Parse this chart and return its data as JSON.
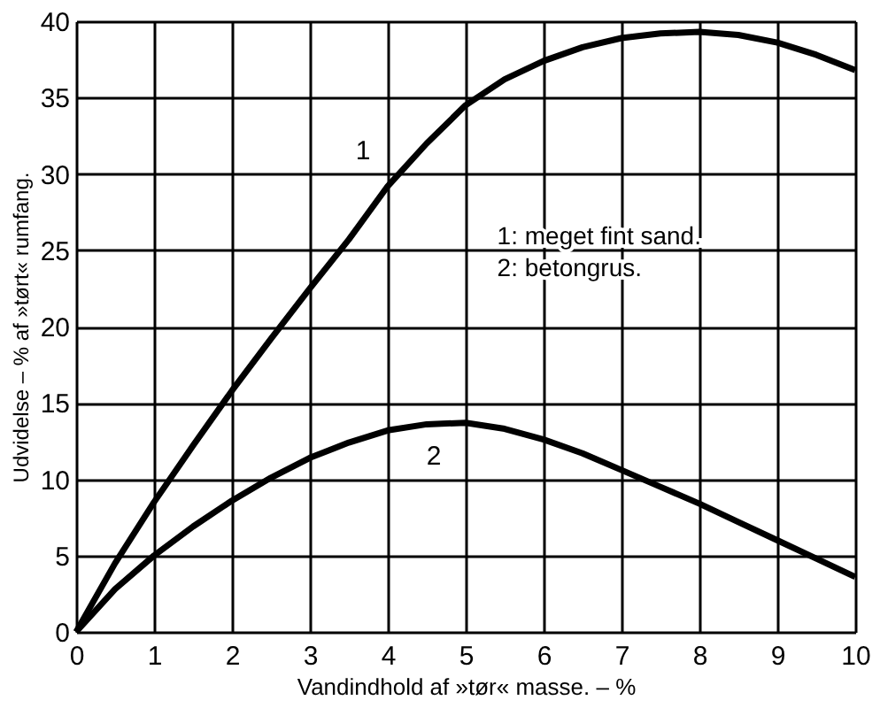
{
  "chart_data": {
    "type": "line",
    "xlabel": "Vandindhold af »tør« masse. – %",
    "ylabel": "Udvidelse – % af »tørt« rumfang.",
    "xlim": [
      0,
      10
    ],
    "ylim": [
      0,
      40
    ],
    "xticks": [
      0,
      1,
      2,
      3,
      4,
      5,
      6,
      7,
      8,
      9,
      10
    ],
    "yticks": [
      0,
      5,
      10,
      15,
      20,
      25,
      30,
      35,
      40
    ],
    "grid": true,
    "legend": false,
    "marker": "none",
    "line_style": "solid",
    "x": [
      0,
      0.5,
      1,
      1.5,
      2,
      2.5,
      3,
      3.5,
      4,
      4.5,
      5,
      5.5,
      6,
      6.5,
      7,
      7.5,
      8,
      8.5,
      9,
      9.5,
      10
    ],
    "series": [
      {
        "name": "1",
        "color": "#000000",
        "values": [
          0,
          4.5,
          8.5,
          12.2,
          15.8,
          19.2,
          22.5,
          25.7,
          29.2,
          32,
          34.5,
          36.2,
          37.4,
          38.3,
          38.9,
          39.2,
          39.3,
          39.1,
          38.6,
          37.8,
          36.8
        ]
      },
      {
        "name": "2",
        "color": "#000000",
        "values": [
          0,
          2.8,
          5,
          6.9,
          8.6,
          10.1,
          11.4,
          12.4,
          13.2,
          13.6,
          13.7,
          13.3,
          12.6,
          11.7,
          10.6,
          9.5,
          8.4,
          7.2,
          6,
          4.8,
          3.6
        ]
      }
    ],
    "annotations": [
      "1:  meget fint sand.",
      "2:  betongrus."
    ]
  }
}
